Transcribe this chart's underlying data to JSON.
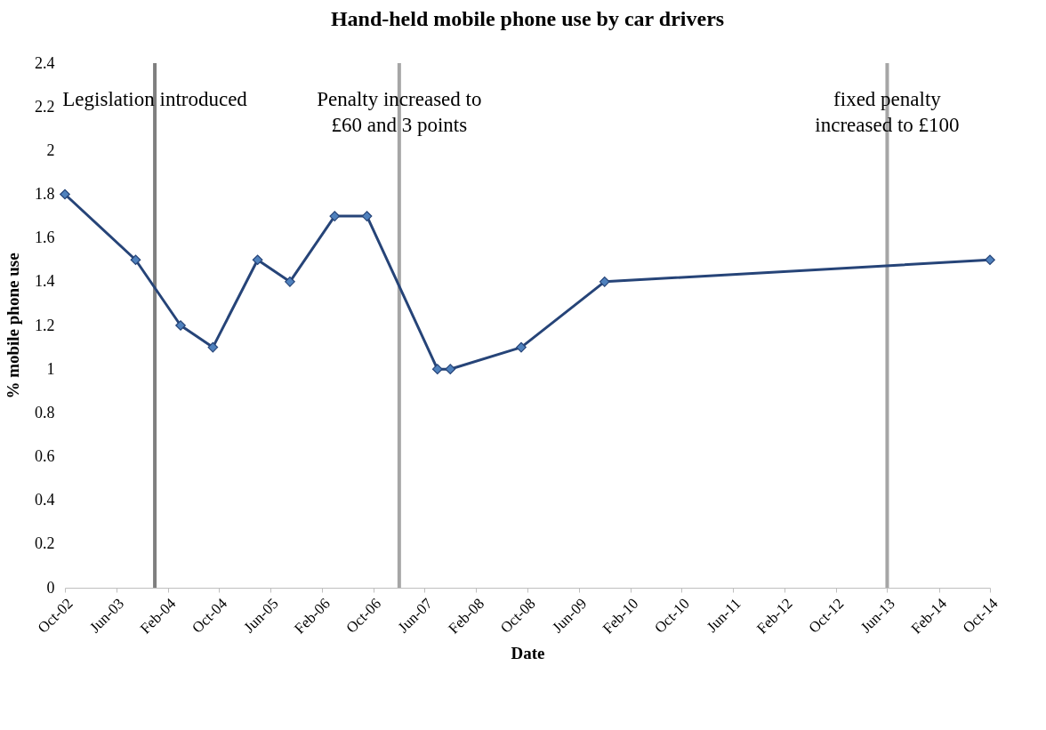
{
  "chart_data": {
    "type": "line",
    "title": "Hand-held mobile phone use by car drivers",
    "xlabel": "Date",
    "ylabel": "% mobile phone use",
    "x": [
      "2002-10",
      "2003-09",
      "2004-04",
      "2004-09",
      "2005-04",
      "2005-09",
      "2006-04",
      "2006-09",
      "2007-08",
      "2007-10",
      "2008-09",
      "2009-10",
      "2014-10"
    ],
    "series": [
      {
        "color": "#264478",
        "values": [
          1.8,
          1.5,
          1.2,
          1.1,
          1.5,
          1.4,
          1.7,
          1.7,
          1.0,
          1.0,
          1.1,
          1.4,
          1.5
        ]
      }
    ],
    "xlim": [
      "2002-10",
      "2014-10"
    ],
    "xticks": [
      {
        "value": "2002-10",
        "label": "Oct-02"
      },
      {
        "value": "2003-06",
        "label": "Jun-03"
      },
      {
        "value": "2004-02",
        "label": "Feb-04"
      },
      {
        "value": "2004-10",
        "label": "Oct-04"
      },
      {
        "value": "2005-06",
        "label": "Jun-05"
      },
      {
        "value": "2006-02",
        "label": "Feb-06"
      },
      {
        "value": "2006-10",
        "label": "Oct-06"
      },
      {
        "value": "2007-06",
        "label": "Jun-07"
      },
      {
        "value": "2008-02",
        "label": "Feb-08"
      },
      {
        "value": "2008-10",
        "label": "Oct-08"
      },
      {
        "value": "2009-06",
        "label": "Jun-09"
      },
      {
        "value": "2010-02",
        "label": "Feb-10"
      },
      {
        "value": "2010-10",
        "label": "Oct-10"
      },
      {
        "value": "2011-06",
        "label": "Jun-11"
      },
      {
        "value": "2012-02",
        "label": "Feb-12"
      },
      {
        "value": "2012-10",
        "label": "Oct-12"
      },
      {
        "value": "2013-06",
        "label": "Jun-13"
      },
      {
        "value": "2014-02",
        "label": "Feb-14"
      },
      {
        "value": "2014-10",
        "label": "Oct-14"
      }
    ],
    "ylim": [
      0,
      2.4
    ],
    "yticks": [
      0,
      0.2,
      0.4,
      0.6,
      0.8,
      1,
      1.2,
      1.4,
      1.6,
      1.8,
      2,
      2.2,
      2.4
    ],
    "ref_lines": [
      {
        "axis": "x",
        "value": "2003-12",
        "label": "Legislation introduced",
        "color": "#7f7f7f"
      },
      {
        "axis": "x",
        "value": "2007-02",
        "label": "Penalty increased to £60 and 3 points",
        "color": "#a6a6a6"
      },
      {
        "axis": "x",
        "value": "2013-06",
        "label": "fixed penalty increased to £100",
        "color": "#a6a6a6"
      }
    ],
    "grid": false,
    "marker": "diamond",
    "line_style": "solid"
  }
}
